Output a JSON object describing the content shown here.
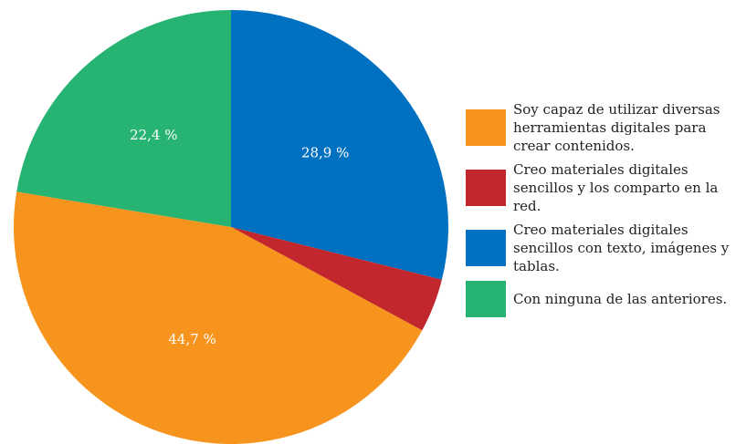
{
  "chart_data": {
    "type": "pie",
    "slices": [
      {
        "label": "Creo materiales digitales sencillos con texto, imágenes y tablas.",
        "value": 28.9,
        "display": "28,9 %",
        "color": "#0070c0"
      },
      {
        "label": "Creo materiales digitales sencillos y los comparto en la red.",
        "value": 4.0,
        "display": "",
        "color": "#c1272d"
      },
      {
        "label": "Soy capaz de utilizar diversas herramientas digitales para crear contenidos.",
        "value": 44.7,
        "display": "44,7 %",
        "color": "#f7941d"
      },
      {
        "label": "Con ninguna de las anteriores.",
        "value": 22.4,
        "display": "22,4 %",
        "color": "#27b472"
      }
    ],
    "legend": [
      {
        "label": "Soy capaz de utilizar diversas herramientas digitales para crear contenidos.",
        "color": "#f7941d"
      },
      {
        "label": "Creo materiales digitales sencillos y los comparto en la red.",
        "color": "#c1272d"
      },
      {
        "label": "Creo materiales digitales sencillos con texto, imágenes y tablas.",
        "color": "#0070c0"
      },
      {
        "label": "Con ninguna de las anteriores.",
        "color": "#27b472"
      }
    ],
    "legend_position": "right"
  }
}
